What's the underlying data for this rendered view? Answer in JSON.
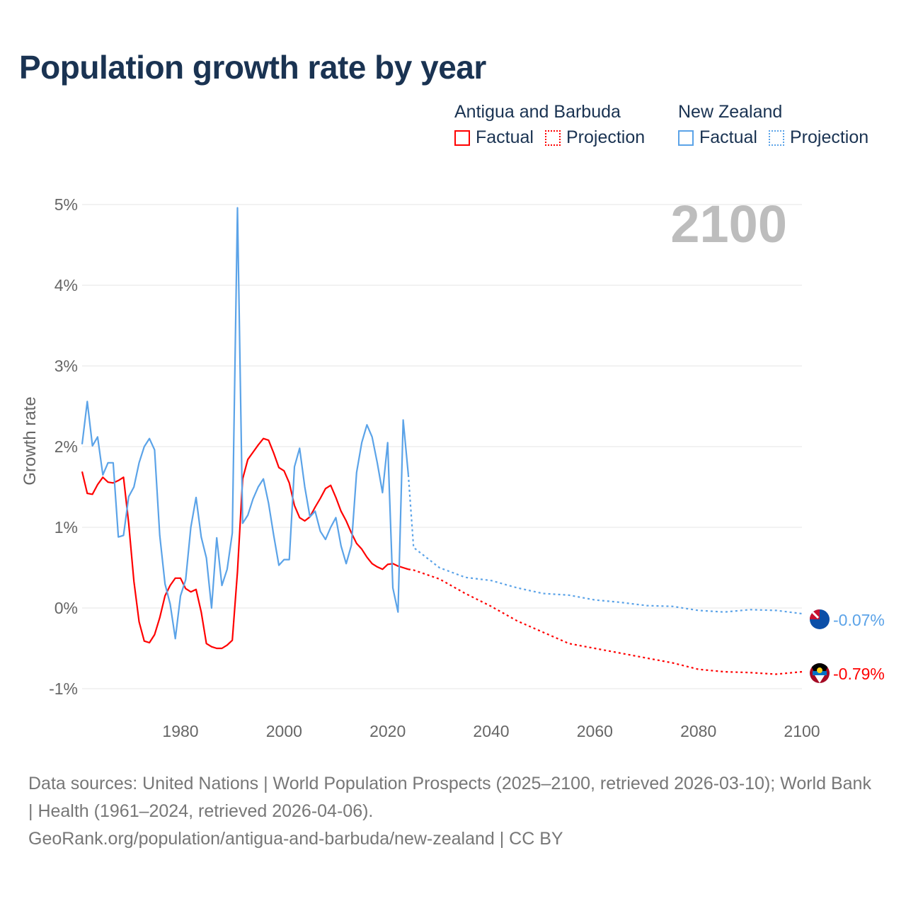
{
  "title": "Population growth rate by year",
  "legend": {
    "groups": [
      {
        "country": "Antigua and Barbuda",
        "factual": "Factual",
        "projection": "Projection",
        "color": "#ff0000"
      },
      {
        "country": "New Zealand",
        "factual": "Factual",
        "projection": "Projection",
        "color": "#5ba3e8"
      }
    ]
  },
  "chart_data": {
    "type": "line",
    "title": "Population growth rate by year",
    "ylabel": "Growth rate",
    "xlabel": "",
    "xlim": [
      1961,
      2100
    ],
    "ylim": [
      -1.2,
      5.1
    ],
    "x_ticks": [
      1980,
      2000,
      2020,
      2040,
      2060,
      2080,
      2100
    ],
    "y_ticks": [
      -1,
      0,
      1,
      2,
      3,
      4,
      5
    ],
    "y_tick_labels": [
      "-1%",
      "0%",
      "1%",
      "2%",
      "3%",
      "4%",
      "5%"
    ],
    "grid": true,
    "year_label": "2100",
    "series": [
      {
        "name": "Antigua and Barbuda",
        "color": "#ff0000",
        "end_label": "-0.79%",
        "flag": "antigua-and-barbuda-flag",
        "factual": {
          "x": [
            1961,
            1962,
            1963,
            1964,
            1965,
            1966,
            1967,
            1968,
            1969,
            1970,
            1971,
            1972,
            1973,
            1974,
            1975,
            1976,
            1977,
            1978,
            1979,
            1980,
            1981,
            1982,
            1983,
            1984,
            1985,
            1986,
            1987,
            1988,
            1989,
            1990,
            1991,
            1992,
            1993,
            1994,
            1995,
            1996,
            1997,
            1998,
            1999,
            2000,
            2001,
            2002,
            2003,
            2004,
            2005,
            2006,
            2007,
            2008,
            2009,
            2010,
            2011,
            2012,
            2013,
            2014,
            2015,
            2016,
            2017,
            2018,
            2019,
            2020,
            2021,
            2022,
            2023,
            2024
          ],
          "y": [
            1.69,
            1.42,
            1.41,
            1.53,
            1.62,
            1.56,
            1.55,
            1.58,
            1.62,
            1.05,
            0.33,
            -0.17,
            -0.41,
            -0.43,
            -0.33,
            -0.12,
            0.15,
            0.28,
            0.37,
            0.37,
            0.24,
            0.2,
            0.23,
            -0.05,
            -0.44,
            -0.48,
            -0.5,
            -0.5,
            -0.46,
            -0.4,
            0.45,
            1.6,
            1.84,
            1.93,
            2.02,
            2.1,
            2.08,
            1.92,
            1.74,
            1.7,
            1.55,
            1.27,
            1.12,
            1.08,
            1.13,
            1.25,
            1.36,
            1.48,
            1.52,
            1.37,
            1.2,
            1.08,
            0.93,
            0.8,
            0.73,
            0.63,
            0.55,
            0.51,
            0.48,
            0.54,
            0.55,
            0.52,
            0.5,
            0.48
          ]
        },
        "projection": {
          "x": [
            2024,
            2025,
            2030,
            2035,
            2040,
            2045,
            2050,
            2055,
            2060,
            2065,
            2070,
            2075,
            2080,
            2085,
            2090,
            2095,
            2100
          ],
          "y": [
            0.48,
            0.47,
            0.36,
            0.18,
            0.02,
            -0.16,
            -0.3,
            -0.44,
            -0.5,
            -0.56,
            -0.62,
            -0.68,
            -0.76,
            -0.79,
            -0.8,
            -0.82,
            -0.79
          ]
        }
      },
      {
        "name": "New Zealand",
        "color": "#5ba3e8",
        "end_label": "-0.07%",
        "flag": "new-zealand-flag",
        "factual": {
          "x": [
            1961,
            1962,
            1963,
            1964,
            1965,
            1966,
            1967,
            1968,
            1969,
            1970,
            1971,
            1972,
            1973,
            1974,
            1975,
            1976,
            1977,
            1978,
            1979,
            1980,
            1981,
            1982,
            1983,
            1984,
            1985,
            1986,
            1987,
            1988,
            1989,
            1990,
            1991,
            1992,
            1993,
            1994,
            1995,
            1996,
            1997,
            1998,
            1999,
            2000,
            2001,
            2002,
            2003,
            2004,
            2005,
            2006,
            2007,
            2008,
            2009,
            2010,
            2011,
            2012,
            2013,
            2014,
            2015,
            2016,
            2017,
            2018,
            2019,
            2020,
            2021,
            2022,
            2023,
            2024
          ],
          "y": [
            2.03,
            2.56,
            2.01,
            2.12,
            1.65,
            1.8,
            1.8,
            0.88,
            0.9,
            1.38,
            1.5,
            1.8,
            2.0,
            2.1,
            1.96,
            0.9,
            0.3,
            0.05,
            -0.38,
            0.15,
            0.35,
            1.0,
            1.37,
            0.88,
            0.62,
            0.0,
            0.87,
            0.28,
            0.48,
            0.93,
            4.96,
            1.05,
            1.15,
            1.35,
            1.5,
            1.6,
            1.3,
            0.9,
            0.53,
            0.6,
            0.6,
            1.75,
            1.98,
            1.5,
            1.13,
            1.2,
            0.95,
            0.85,
            1.0,
            1.12,
            0.77,
            0.55,
            0.78,
            1.68,
            2.05,
            2.27,
            2.12,
            1.8,
            1.43,
            2.05,
            0.25,
            -0.05,
            2.33,
            1.65
          ]
        },
        "projection": {
          "x": [
            2024,
            2025,
            2030,
            2035,
            2040,
            2045,
            2050,
            2055,
            2060,
            2065,
            2070,
            2075,
            2080,
            2085,
            2090,
            2095,
            2100
          ],
          "y": [
            1.65,
            0.75,
            0.5,
            0.38,
            0.34,
            0.25,
            0.18,
            0.16,
            0.1,
            0.07,
            0.03,
            0.02,
            -0.03,
            -0.05,
            -0.02,
            -0.03,
            -0.07
          ]
        }
      }
    ]
  },
  "footer": {
    "sources": "Data sources: United Nations | World Population Prospects (2025–2100, retrieved 2026-03-10); World Bank | Health (1961–2024, retrieved 2026-04-06).",
    "link": "GeoRank.org/population/antigua-and-barbuda/new-zealand | CC BY"
  }
}
